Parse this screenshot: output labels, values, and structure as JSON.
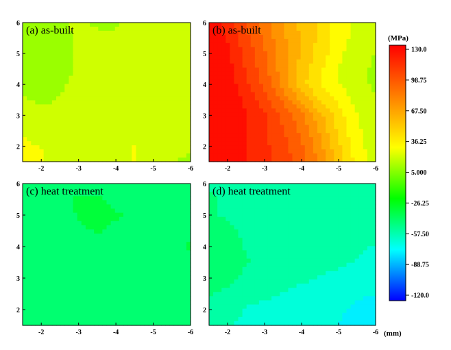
{
  "chart_data": {
    "type": "heatmap",
    "axes": {
      "x_ticks": [
        "-2",
        "-3",
        "-4",
        "-5",
        "-6"
      ],
      "x_tick_values": [
        -2,
        -3,
        -4,
        -5,
        -6
      ],
      "x_range": [
        -1.5,
        -6
      ],
      "y_ticks": [
        "2",
        "3",
        "4",
        "5",
        "6"
      ],
      "y_tick_values": [
        2,
        3,
        4,
        5,
        6
      ],
      "y_range": [
        1.5,
        6
      ],
      "x_unit": "(mm)",
      "grid": false
    },
    "colorbar": {
      "title": "(MPa)",
      "tick_labels": [
        "130.0",
        "98.75",
        "67.50",
        "36.25",
        "5.000",
        "-26.25",
        "-57.50",
        "-88.75",
        "-120.0"
      ],
      "min": -120.0,
      "max": 130.0,
      "colors": [
        "#ff0000",
        "#ff8000",
        "#ffff00",
        "#00ff00",
        "#00ffff",
        "#0000ff"
      ]
    },
    "panels": [
      {
        "label": "(a) as-built",
        "x": [
          -1.5,
          -2,
          -2.5,
          -3,
          -3.5,
          -4,
          -4.5,
          -5,
          -5.5,
          -6
        ],
        "y": [
          1.5,
          2,
          2.5,
          3,
          3.5,
          4,
          4.5,
          5,
          5.5,
          6
        ],
        "z": [
          [
            32,
            28,
            20,
            15,
            20,
            24,
            26,
            22,
            16,
            14
          ],
          [
            28,
            25,
            20,
            18,
            22,
            24,
            26,
            22,
            18,
            16
          ],
          [
            25,
            22,
            18,
            20,
            22,
            24,
            24,
            20,
            20,
            20
          ],
          [
            20,
            18,
            16,
            22,
            20,
            22,
            22,
            22,
            24,
            24
          ],
          [
            16,
            14,
            16,
            20,
            22,
            22,
            20,
            22,
            24,
            24
          ],
          [
            14,
            12,
            14,
            18,
            20,
            22,
            22,
            24,
            25,
            24
          ],
          [
            12,
            10,
            13,
            16,
            20,
            20,
            22,
            22,
            24,
            24
          ],
          [
            12,
            11,
            14,
            16,
            20,
            18,
            20,
            22,
            24,
            22
          ],
          [
            12,
            12,
            14,
            16,
            16,
            16,
            18,
            20,
            20,
            20
          ],
          [
            13,
            13,
            15,
            16,
            15,
            15,
            16,
            18,
            18,
            18
          ]
        ]
      },
      {
        "label": "(b) as-built",
        "x": [
          -1.5,
          -2,
          -2.5,
          -3,
          -3.5,
          -4,
          -4.5,
          -5,
          -5.5,
          -6
        ],
        "y": [
          1.5,
          2,
          2.5,
          3,
          3.5,
          4,
          4.5,
          5,
          5.5,
          6
        ],
        "z": [
          [
            128,
            126,
            120,
            112,
            104,
            94,
            76,
            54,
            32,
            22
          ],
          [
            128,
            126,
            120,
            112,
            102,
            90,
            70,
            48,
            30,
            20
          ],
          [
            128,
            126,
            120,
            110,
            100,
            86,
            66,
            44,
            28,
            18
          ],
          [
            128,
            126,
            120,
            110,
            96,
            80,
            60,
            40,
            26,
            18
          ],
          [
            128,
            126,
            118,
            104,
            86,
            64,
            46,
            34,
            22,
            16
          ],
          [
            128,
            126,
            112,
            96,
            74,
            50,
            36,
            26,
            18,
            14
          ],
          [
            128,
            124,
            108,
            92,
            72,
            52,
            38,
            26,
            18,
            14
          ],
          [
            128,
            122,
            106,
            90,
            72,
            56,
            42,
            28,
            20,
            15
          ],
          [
            128,
            118,
            102,
            86,
            70,
            56,
            44,
            30,
            22,
            16
          ],
          [
            126,
            114,
            98,
            82,
            66,
            54,
            44,
            32,
            24,
            18
          ]
        ]
      },
      {
        "label": "(c) heat treatment",
        "x": [
          -1.5,
          -2,
          -2.5,
          -3,
          -3.5,
          -4,
          -4.5,
          -5,
          -5.5,
          -6
        ],
        "y": [
          1.5,
          2,
          2.5,
          3,
          3.5,
          4,
          4.5,
          5,
          5.5,
          6
        ],
        "z": [
          [
            -42,
            -43,
            -44,
            -46,
            -46,
            -44,
            -42,
            -42,
            -42,
            -42
          ],
          [
            -42,
            -43,
            -44,
            -46,
            -44,
            -42,
            -42,
            -42,
            -42,
            -42
          ],
          [
            -42,
            -43,
            -44,
            -45,
            -44,
            -42,
            -42,
            -42,
            -42,
            -42
          ],
          [
            -42,
            -44,
            -45,
            -44,
            -43,
            -42,
            -42,
            -42,
            -42,
            -42
          ],
          [
            -42,
            -44,
            -44,
            -43,
            -42,
            -42,
            -42,
            -42,
            -40,
            -38
          ],
          [
            -44,
            -45,
            -44,
            -42,
            -40,
            -40,
            -42,
            -42,
            -38,
            -36
          ],
          [
            -42,
            -44,
            -42,
            -38,
            -36,
            -38,
            -40,
            -40,
            -38,
            -38
          ],
          [
            -40,
            -42,
            -40,
            -36,
            -34,
            -36,
            -38,
            -40,
            -40,
            -40
          ],
          [
            -38,
            -40,
            -38,
            -36,
            -36,
            -38,
            -40,
            -40,
            -42,
            -42
          ],
          [
            -38,
            -38,
            -38,
            -38,
            -38,
            -40,
            -40,
            -42,
            -42,
            -42
          ]
        ]
      },
      {
        "label": "(d) heat treatment",
        "x": [
          -1.5,
          -2,
          -2.5,
          -3,
          -3.5,
          -4,
          -4.5,
          -5,
          -5.5,
          -6
        ],
        "y": [
          1.5,
          2,
          2.5,
          3,
          3.5,
          4,
          4.5,
          5,
          5.5,
          6
        ],
        "z": [
          [
            -54,
            -56,
            -60,
            -62,
            -64,
            -64,
            -66,
            -68,
            -72,
            -76
          ],
          [
            -50,
            -54,
            -58,
            -60,
            -60,
            -62,
            -64,
            -66,
            -70,
            -72
          ],
          [
            -46,
            -50,
            -54,
            -56,
            -58,
            -60,
            -62,
            -64,
            -66,
            -68
          ],
          [
            -40,
            -44,
            -50,
            -52,
            -54,
            -56,
            -58,
            -60,
            -62,
            -64
          ],
          [
            -36,
            -40,
            -46,
            -50,
            -52,
            -54,
            -54,
            -56,
            -58,
            -60
          ],
          [
            -40,
            -44,
            -48,
            -50,
            -52,
            -52,
            -52,
            -54,
            -56,
            -58
          ],
          [
            -44,
            -46,
            -48,
            -50,
            -52,
            -52,
            -50,
            -52,
            -54,
            -56
          ],
          [
            -46,
            -48,
            -48,
            -50,
            -50,
            -50,
            -50,
            -52,
            -54,
            -56
          ],
          [
            -46,
            -48,
            -50,
            -50,
            -50,
            -52,
            -52,
            -52,
            -54,
            -54
          ],
          [
            -48,
            -48,
            -50,
            -50,
            -52,
            -52,
            -52,
            -54,
            -54,
            -56
          ]
        ]
      }
    ]
  }
}
